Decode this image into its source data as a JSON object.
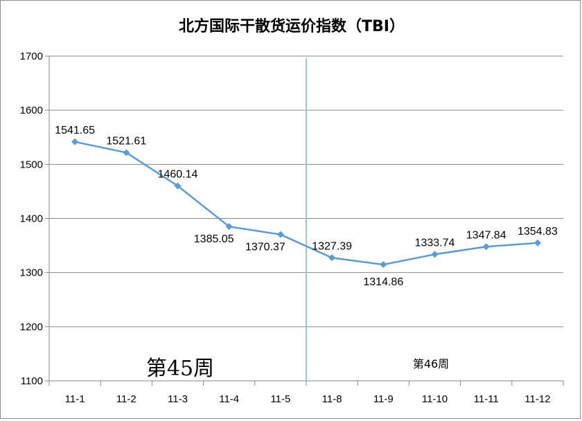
{
  "chart_data": {
    "type": "line",
    "title": "北方国际干散货运价指数（TBI）",
    "categories": [
      "11-1",
      "11-2",
      "11-3",
      "11-4",
      "11-5",
      "11-8",
      "11-9",
      "11-10",
      "11-11",
      "11-12"
    ],
    "series": [
      {
        "values": [
          1541.65,
          1521.61,
          1460.14,
          1385.05,
          1370.37,
          1327.39,
          1314.86,
          1333.74,
          1347.84,
          1354.83
        ],
        "labels": [
          "1541.65",
          "1521.61",
          "1460.14",
          "1385.05",
          "1370.37",
          "1327.39",
          "1314.86",
          "1333.74",
          "1347.84",
          "1354.83"
        ]
      }
    ],
    "ylim": [
      1100,
      1700
    ],
    "yticks": [
      "1100",
      "1200",
      "1300",
      "1400",
      "1500",
      "1600",
      "1700"
    ],
    "grid": true,
    "legend": "none",
    "annotations": {
      "week45": "第45周",
      "week46": "第46周"
    },
    "colors": {
      "line": "#5b9bd5",
      "divider": "#9dc3e6",
      "grid": "#868686",
      "axis": "#868686"
    }
  }
}
